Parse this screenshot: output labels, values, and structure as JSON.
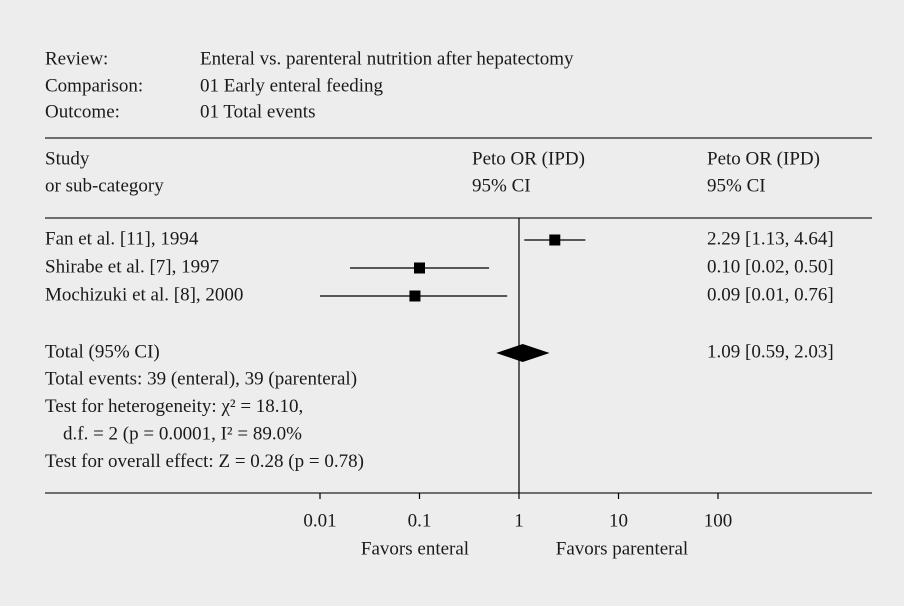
{
  "chart_data": {
    "type": "forest",
    "header": {
      "review_label": "Review:",
      "review": "Enteral vs. parenteral nutrition after hepatectomy",
      "comparison_label": "Comparison:",
      "comparison": "01 Early enteral feeding",
      "outcome_label": "Outcome:",
      "outcome": "01 Total events"
    },
    "columns": {
      "study": [
        "Study",
        "or sub-category"
      ],
      "plot": [
        "Peto OR (IPD)",
        "95% CI"
      ],
      "estimate": [
        "Peto OR (IPD)",
        "95% CI"
      ]
    },
    "studies": [
      {
        "name": "Fan et al. [11], 1994",
        "value": 2.29,
        "lower": 1.13,
        "upper": 4.64,
        "label": "2.29 [1.13, 4.64]"
      },
      {
        "name": "Shirabe et al. [7], 1997",
        "value": 0.1,
        "lower": 0.02,
        "upper": 0.5,
        "label": "0.10 [0.02, 0.50]"
      },
      {
        "name": "Mochizuki et al. [8], 2000",
        "value": 0.09,
        "lower": 0.01,
        "upper": 0.76,
        "label": "0.09 [0.01, 0.76]"
      }
    ],
    "total": {
      "name": "Total (95% CI)",
      "value": 1.09,
      "lower": 0.59,
      "upper": 2.03,
      "label": "1.09 [0.59, 2.03]"
    },
    "notes": [
      "Total events: 39 (enteral), 39 (parenteral)",
      "Test for heterogeneity: χ² = 18.10,",
      "d.f. = 2 (p = 0.0001, I² = 89.0%",
      "Test for overall effect: Z = 0.28 (p = 0.78)"
    ],
    "log_scale": true,
    "xlim": [
      0.01,
      100
    ],
    "xticks": [
      0.01,
      0.1,
      1,
      10,
      100
    ],
    "reference": 1,
    "favors_left": "Favors enteral",
    "favors_right": "Favors parenteral",
    "color": "#000000"
  }
}
